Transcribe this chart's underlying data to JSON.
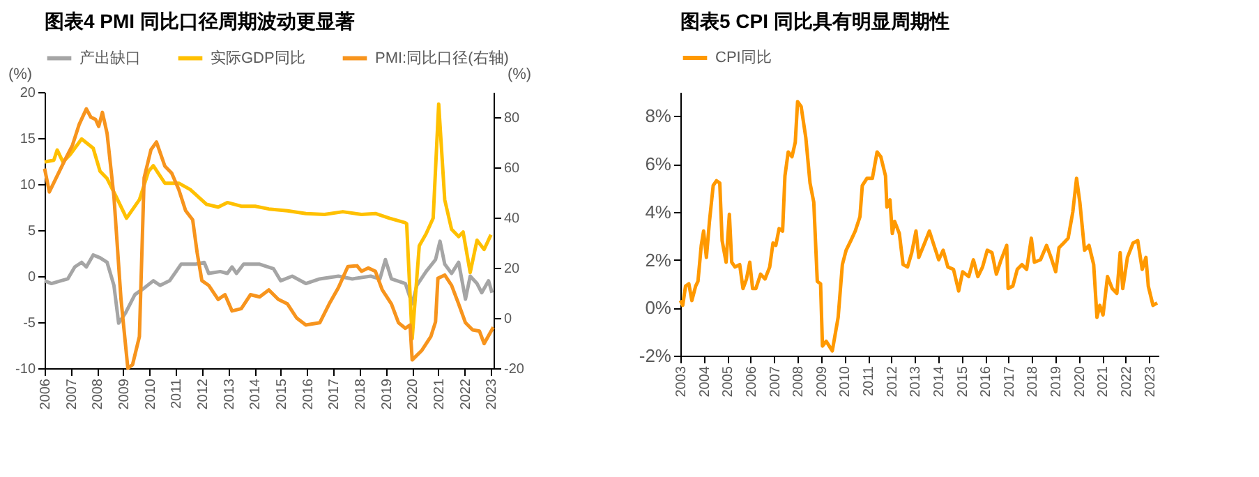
{
  "chart_data": [
    {
      "type": "line",
      "title": "图表4    PMI 同比口径周期波动更显著",
      "ylabel": "(%)",
      "y2label": "(%)",
      "legend": "top",
      "xlim": [
        2006,
        2023.1
      ],
      "xticks": [
        2006,
        2007,
        2008,
        2009,
        2010,
        2011,
        2012,
        2013,
        2014,
        2015,
        2016,
        2017,
        2018,
        2019,
        2020,
        2021,
        2022,
        2023
      ],
      "ylim": [
        -10,
        20
      ],
      "yticks": [
        -10,
        -5,
        0,
        5,
        10,
        15,
        20
      ],
      "y2lim": [
        -20,
        90
      ],
      "y2ticks": [
        -20,
        0,
        20,
        40,
        60,
        80
      ],
      "series": [
        {
          "name": "产出缺口",
          "color": "#a5a5a5",
          "x": [
            2006.0,
            2006.26,
            2006.62,
            2006.88,
            2007.15,
            2007.41,
            2007.59,
            2007.85,
            2008.11,
            2008.38,
            2008.64,
            2008.82,
            2009.08,
            2009.26,
            2009.44,
            2009.79,
            2010.14,
            2010.4,
            2010.76,
            2011.2,
            2011.73,
            2012.08,
            2012.25,
            2012.69,
            2012.96,
            2013.14,
            2013.31,
            2013.58,
            2014.19,
            2014.72,
            2014.99,
            2015.43,
            2015.95,
            2016.48,
            2017.19,
            2017.72,
            2018.42,
            2018.77,
            2018.98,
            2019.21,
            2019.74,
            2020.0,
            2020.18,
            2020.53,
            2020.89,
            2021.06,
            2021.24,
            2021.5,
            2021.77,
            2022.03,
            2022.21,
            2022.47,
            2022.65,
            2022.91,
            2023.04
          ],
          "values": [
            -0.5,
            -0.8,
            -0.5,
            -0.3,
            1.0,
            1.5,
            1.0,
            2.3,
            2.0,
            1.5,
            -1.0,
            -5.1,
            -4.0,
            -3.0,
            -2.0,
            -1.3,
            -0.5,
            -1.0,
            -0.5,
            1.3,
            1.3,
            1.5,
            0.3,
            0.5,
            0.3,
            1.0,
            0.3,
            1.3,
            1.3,
            0.8,
            -0.5,
            0.0,
            -0.8,
            -0.3,
            0.0,
            -0.3,
            0.0,
            -0.3,
            1.8,
            -0.3,
            -0.8,
            -3.0,
            -1.0,
            0.5,
            1.8,
            3.8,
            1.3,
            0.3,
            1.5,
            -2.5,
            0.0,
            -0.8,
            -1.8,
            -0.5,
            -1.8
          ]
        },
        {
          "name": "实际GDP同比",
          "color": "#ffc000",
          "x": [
            2006.0,
            2006.35,
            2006.48,
            2006.7,
            2006.97,
            2007.41,
            2007.85,
            2008.11,
            2008.38,
            2008.73,
            2009.12,
            2009.61,
            2009.96,
            2010.14,
            2010.58,
            2011.11,
            2011.55,
            2012.17,
            2012.61,
            2012.96,
            2013.49,
            2014.02,
            2014.54,
            2015.25,
            2015.95,
            2016.66,
            2017.36,
            2018.07,
            2018.6,
            2019.13,
            2019.74,
            2019.79,
            2020.0,
            2020.27,
            2020.53,
            2020.8,
            2021.01,
            2021.24,
            2021.5,
            2021.77,
            2021.94,
            2022.21,
            2022.47,
            2022.74,
            2023.0
          ],
          "values": [
            12.4,
            12.6,
            13.7,
            12.4,
            13.2,
            14.9,
            13.9,
            11.4,
            10.6,
            8.6,
            6.3,
            8.3,
            11.4,
            12.0,
            10.1,
            10.1,
            9.4,
            7.8,
            7.5,
            8.0,
            7.6,
            7.6,
            7.3,
            7.1,
            6.8,
            6.7,
            7.0,
            6.7,
            6.8,
            6.3,
            5.8,
            5.7,
            -6.8,
            3.3,
            4.6,
            6.3,
            18.7,
            8.3,
            5.1,
            4.3,
            4.8,
            0.4,
            3.9,
            2.9,
            4.5
          ]
        },
        {
          "name": "PMI:同比口径(右轴)",
          "color": "#f7941d",
          "axis": "y2",
          "x": [
            2006.0,
            2006.18,
            2006.44,
            2006.79,
            2007.06,
            2007.32,
            2007.59,
            2007.76,
            2007.94,
            2008.06,
            2008.2,
            2008.38,
            2008.64,
            2008.91,
            2009.17,
            2009.35,
            2009.61,
            2009.79,
            2010.05,
            2010.26,
            2010.58,
            2010.84,
            2011.11,
            2011.37,
            2011.64,
            2011.81,
            2011.99,
            2012.25,
            2012.61,
            2012.87,
            2013.14,
            2013.49,
            2013.84,
            2014.19,
            2014.54,
            2014.9,
            2015.25,
            2015.6,
            2015.95,
            2016.48,
            2016.84,
            2017.19,
            2017.55,
            2017.9,
            2018.07,
            2018.33,
            2018.6,
            2018.86,
            2019.21,
            2019.48,
            2019.74,
            2019.92,
            2020.0,
            2020.36,
            2020.71,
            2020.89,
            2020.98,
            2021.24,
            2021.5,
            2021.77,
            2022.03,
            2022.3,
            2022.56,
            2022.74,
            2023.09
          ],
          "values": [
            59.5,
            50.2,
            55.8,
            63.3,
            68.8,
            77.2,
            83.3,
            80.0,
            79.1,
            76.3,
            81.9,
            73.5,
            48.4,
            7.4,
            -20,
            -18.6,
            -7.4,
            55.8,
            67.0,
            70.1,
            60.5,
            57.7,
            51.2,
            42.8,
            39.1,
            26.0,
            14.9,
            13.0,
            7.4,
            9.3,
            2.8,
            3.7,
            9.3,
            8.4,
            11.2,
            7.4,
            5.6,
            0,
            -2.8,
            -1.9,
            5.6,
            12.1,
            20.5,
            20.8,
            18.6,
            19.9,
            18.6,
            11.2,
            5.6,
            -1.9,
            -4.1,
            -2.8,
            -16.7,
            -13.0,
            -7.4,
            -1.5,
            15.8,
            17.1,
            13.0,
            5.6,
            -1.9,
            -4.7,
            -5.2,
            -10.2,
            -3.7
          ]
        }
      ]
    },
    {
      "type": "line",
      "title": "图表5    CPI 同比具有明显周期性",
      "legend": "top",
      "xlim": [
        2003,
        2023.4
      ],
      "xticks": [
        2003,
        2004,
        2005,
        2006,
        2007,
        2008,
        2009,
        2010,
        2011,
        2012,
        2013,
        2014,
        2015,
        2016,
        2017,
        2018,
        2019,
        2020,
        2021,
        2022,
        2023
      ],
      "ylim": [
        -2,
        9
      ],
      "yticks": [
        {
          "value": -2,
          "label": "-2%"
        },
        {
          "value": 0,
          "label": "0%"
        },
        {
          "value": 2,
          "label": "2%"
        },
        {
          "value": 4,
          "label": "4%"
        },
        {
          "value": 6,
          "label": "6%"
        },
        {
          "value": 8,
          "label": "8%"
        }
      ],
      "series": [
        {
          "name": "CPI同比",
          "color": "#ff9900",
          "x": [
            2003.0,
            2003.1,
            2003.22,
            2003.36,
            2003.49,
            2003.65,
            2003.75,
            2003.89,
            2003.99,
            2004.11,
            2004.24,
            2004.4,
            2004.54,
            2004.68,
            2004.78,
            2004.95,
            2005.09,
            2005.19,
            2005.33,
            2005.53,
            2005.67,
            2005.82,
            2005.96,
            2006.08,
            2006.22,
            2006.42,
            2006.61,
            2006.81,
            2006.95,
            2007.07,
            2007.21,
            2007.36,
            2007.46,
            2007.6,
            2007.76,
            2007.9,
            2008.0,
            2008.15,
            2008.35,
            2008.53,
            2008.69,
            2008.84,
            2008.98,
            2009.06,
            2009.22,
            2009.48,
            2009.73,
            2009.91,
            2010.07,
            2010.27,
            2010.46,
            2010.66,
            2010.76,
            2010.96,
            2011.19,
            2011.39,
            2011.55,
            2011.75,
            2011.81,
            2011.94,
            2012.04,
            2012.14,
            2012.34,
            2012.5,
            2012.69,
            2012.87,
            2013.05,
            2013.17,
            2013.42,
            2013.62,
            2013.82,
            2014.02,
            2014.21,
            2014.41,
            2014.65,
            2014.87,
            2015.04,
            2015.3,
            2015.5,
            2015.69,
            2015.89,
            2016.09,
            2016.29,
            2016.48,
            2016.68,
            2016.92,
            2016.98,
            2017.18,
            2017.37,
            2017.57,
            2017.77,
            2017.97,
            2018.1,
            2018.36,
            2018.62,
            2018.81,
            2019.01,
            2019.15,
            2019.35,
            2019.54,
            2019.74,
            2019.9,
            2020.04,
            2020.24,
            2020.43,
            2020.63,
            2020.77,
            2020.89,
            2021.03,
            2021.22,
            2021.42,
            2021.62,
            2021.76,
            2021.87,
            2022.07,
            2022.31,
            2022.51,
            2022.7,
            2022.86,
            2022.96,
            2023.16,
            2023.34
          ],
          "values": [
            0.3,
            0.1,
            0.9,
            1.0,
            0.3,
            0.9,
            1.1,
            2.6,
            3.2,
            2.1,
            3.6,
            5.1,
            5.3,
            5.2,
            2.8,
            1.9,
            3.9,
            1.9,
            1.7,
            1.8,
            0.8,
            1.2,
            1.9,
            0.8,
            0.8,
            1.4,
            1.2,
            1.7,
            2.7,
            2.6,
            3.3,
            3.2,
            5.5,
            6.5,
            6.3,
            6.9,
            8.6,
            8.4,
            7.1,
            5.2,
            4.4,
            1.1,
            1.0,
            -1.6,
            -1.4,
            -1.8,
            -0.4,
            1.8,
            2.4,
            2.8,
            3.2,
            3.8,
            5.1,
            5.4,
            5.4,
            6.5,
            6.3,
            5.5,
            4.2,
            4.5,
            3.1,
            3.6,
            3.1,
            1.8,
            1.7,
            2.3,
            3.2,
            2.1,
            2.7,
            3.2,
            2.6,
            2.0,
            2.4,
            1.7,
            1.6,
            0.7,
            1.5,
            1.3,
            2.0,
            1.3,
            1.7,
            2.4,
            2.3,
            1.4,
            2.0,
            2.6,
            0.8,
            0.9,
            1.6,
            1.8,
            1.6,
            2.9,
            1.9,
            2.0,
            2.6,
            2.1,
            1.5,
            2.5,
            2.7,
            2.9,
            4.0,
            5.4,
            4.4,
            2.4,
            2.6,
            1.8,
            -0.4,
            0.1,
            -0.3,
            1.3,
            0.8,
            0.6,
            2.3,
            0.8,
            2.1,
            2.7,
            2.8,
            1.6,
            2.1,
            0.9,
            0.1,
            0.2
          ]
        }
      ]
    }
  ]
}
